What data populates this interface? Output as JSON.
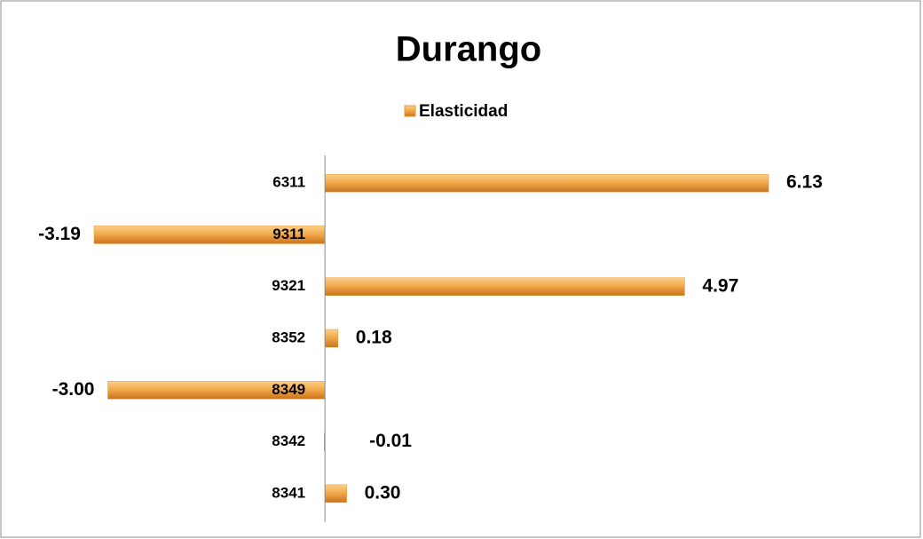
{
  "chart_data": {
    "type": "bar",
    "orientation": "horizontal",
    "title": "Durango",
    "categories": [
      "6311",
      "9311",
      "9321",
      "8352",
      "8349",
      "8342",
      "8341"
    ],
    "series": [
      {
        "name": "Elasticidad",
        "color": "#e8952e",
        "values": [
          6.13,
          -3.19,
          4.97,
          0.18,
          -3.0,
          -0.01,
          0.3
        ],
        "value_labels": [
          "6.13",
          "-3.19",
          "4.97",
          "0.18",
          "-3.00",
          "-0.01",
          "0.30"
        ]
      }
    ],
    "legend": "top",
    "grid": false
  }
}
